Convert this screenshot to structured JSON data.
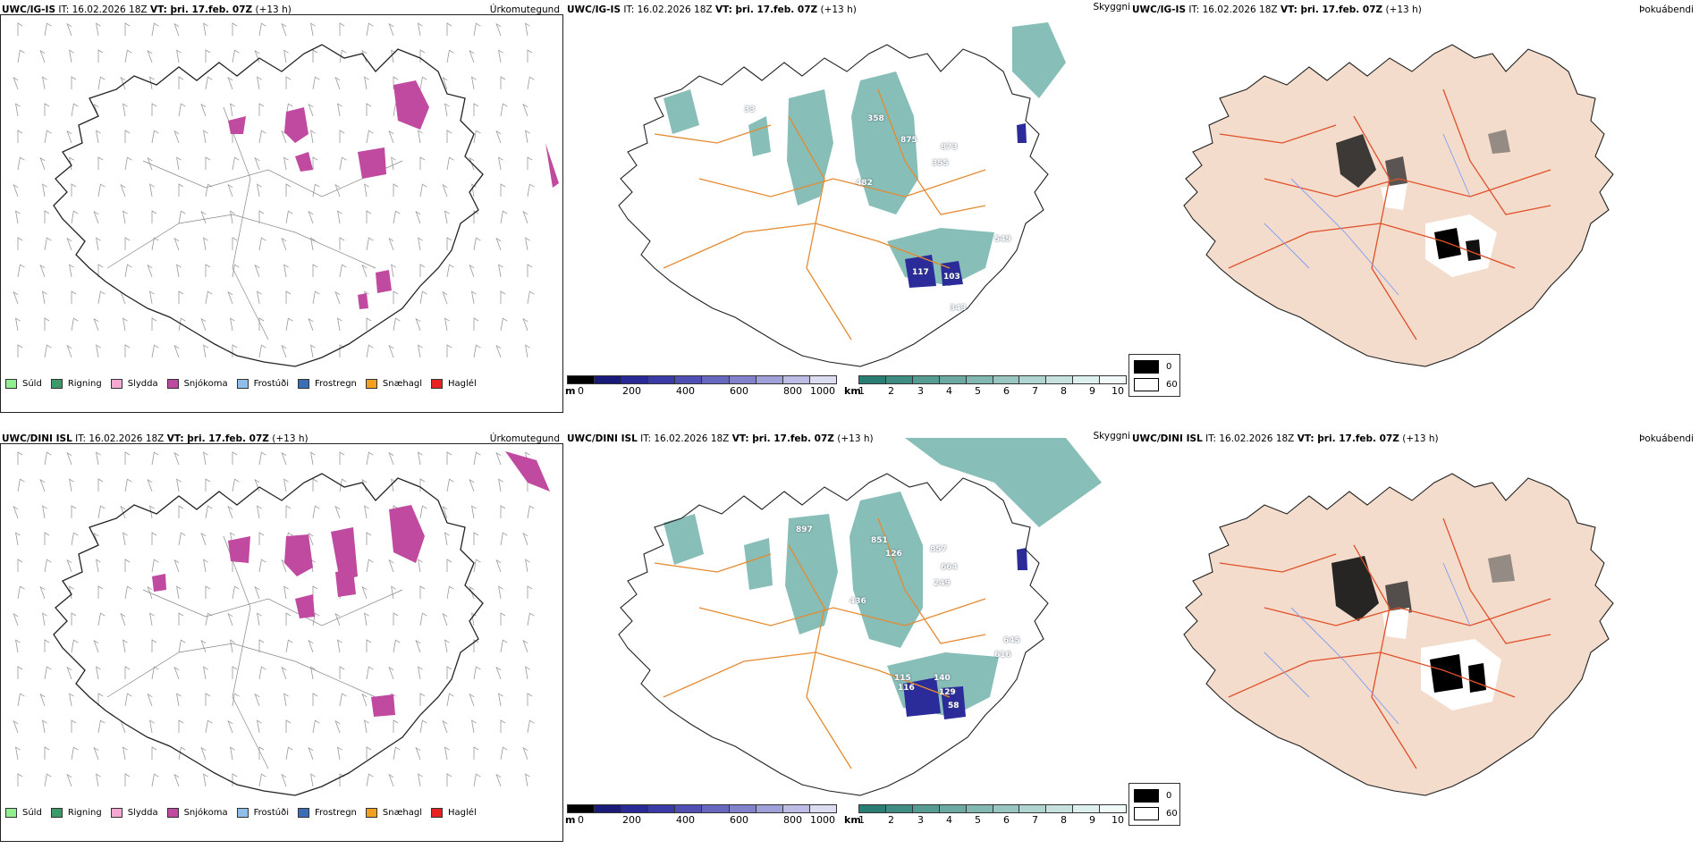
{
  "rows": [
    {
      "precip": {
        "model": "UWC/IG-IS",
        "it": "IT: 16.02.2026 18Z",
        "vt": "VT: þri. 17.feb. 07Z",
        "lead": "(+13 h)",
        "tag": "Úrkomutegund"
      },
      "vis": {
        "model": "UWC/IG-IS",
        "it": "IT: 16.02.2026 18Z",
        "vt": "VT: þri. 17.feb. 07Z",
        "lead": "(+13 h)",
        "tag": "Skyggni",
        "labels": [
          "33",
          "358",
          "875",
          "873",
          "355",
          "482",
          "117",
          "103",
          "343",
          "549"
        ]
      },
      "fog": {
        "model": "UWC/IG-IS",
        "it": "IT: 16.02.2026 18Z",
        "vt": "VT: þri. 17.feb. 07Z",
        "lead": "(+13 h)",
        "tag": "Þokuábendi"
      }
    },
    {
      "precip": {
        "model": "UWC/DINI ISL",
        "it": "IT: 16.02.2026 18Z",
        "vt": "VT: þri. 17.feb. 07Z",
        "lead": "(+13 h)",
        "tag": "Úrkomutegund"
      },
      "vis": {
        "model": "UWC/DINI ISL",
        "it": "IT: 16.02.2026 18Z",
        "vt": "VT: þri. 17.feb. 07Z",
        "lead": "(+13 h)",
        "tag": "Skyggni",
        "labels": [
          "897",
          "851",
          "126",
          "857",
          "664",
          "249",
          "436",
          "115",
          "116",
          "140",
          "129",
          "58",
          "616",
          "645"
        ]
      },
      "fog": {
        "model": "UWC/DINI ISL",
        "it": "IT: 16.02.2026 18Z",
        "vt": "VT: þri. 17.feb. 07Z",
        "lead": "(+13 h)",
        "tag": "Þokuábendi"
      }
    }
  ],
  "precip_legend": [
    {
      "label": "Súld",
      "color": "#90ee90"
    },
    {
      "label": "Rigning",
      "color": "#3c9a6a"
    },
    {
      "label": "Slydda",
      "color": "#f4a8d2"
    },
    {
      "label": "Snjókoma",
      "color": "#c04aa0"
    },
    {
      "label": "Frostúði",
      "color": "#8fbfe8"
    },
    {
      "label": "Frostregn",
      "color": "#3a6fb8"
    },
    {
      "label": "Snæhagl",
      "color": "#f0a020"
    },
    {
      "label": "Haglél",
      "color": "#e82020"
    }
  ],
  "ceiling_scale": {
    "unit": "m",
    "ticks": [
      "0",
      "200",
      "400",
      "600",
      "800",
      "1000"
    ],
    "colors": [
      "#000000",
      "#1a1a78",
      "#2a2a96",
      "#3b3ba8",
      "#5050b4",
      "#6767c0",
      "#8282cc",
      "#a0a0d8",
      "#bcbce4",
      "#dcdcf0"
    ]
  },
  "vis_scale": {
    "unit": "km",
    "ticks": [
      "1",
      "2",
      "3",
      "4",
      "5",
      "6",
      "7",
      "8",
      "9",
      "10"
    ],
    "colors": [
      "#2a7d72",
      "#3f8c82",
      "#559b92",
      "#6ba9a1",
      "#82b8b1",
      "#99c6c0",
      "#b0d4cf",
      "#c7e2de",
      "#def0ed",
      "#f2faf9"
    ]
  },
  "fog_legend": [
    {
      "label": "0",
      "color": "#000000"
    },
    {
      "label": "60",
      "color": "#ffffff"
    }
  ]
}
